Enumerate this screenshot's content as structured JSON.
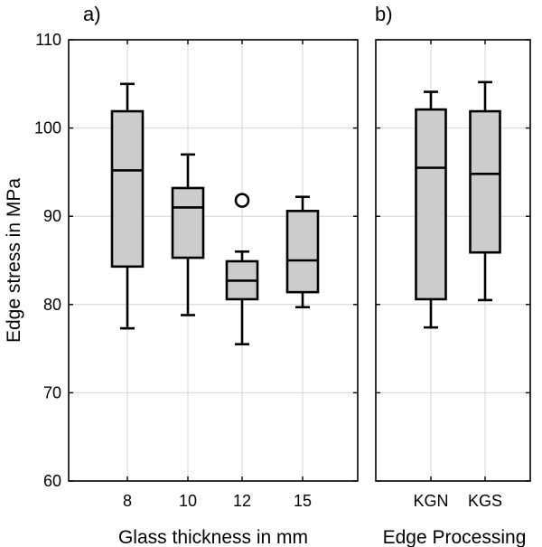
{
  "chart_data": [
    {
      "type": "box",
      "panel_label": "a)",
      "xlabel": "Glass thickness in mm",
      "ylabel": "Edge stress in MPa",
      "ylim": [
        60,
        110
      ],
      "yticks": [
        60,
        70,
        80,
        90,
        100,
        110
      ],
      "grid": true,
      "box_color": "#cccccc",
      "categories": [
        "8",
        "10",
        "12",
        "15"
      ],
      "boxes": [
        {
          "category": "8",
          "whisker_low": 77.3,
          "q1": 84.3,
          "median": 95.2,
          "q3": 101.9,
          "whisker_high": 105.0,
          "outliers": []
        },
        {
          "category": "10",
          "whisker_low": 78.8,
          "q1": 85.3,
          "median": 91.0,
          "q3": 93.2,
          "whisker_high": 97.0,
          "outliers": []
        },
        {
          "category": "12",
          "whisker_low": 75.5,
          "q1": 80.6,
          "median": 82.7,
          "q3": 84.9,
          "whisker_high": 86.0,
          "outliers": [
            91.8
          ]
        },
        {
          "category": "15",
          "whisker_low": 79.7,
          "q1": 81.4,
          "median": 85.0,
          "q3": 90.6,
          "whisker_high": 92.2,
          "outliers": []
        }
      ]
    },
    {
      "type": "box",
      "panel_label": "b)",
      "xlabel": "Edge Processing",
      "ylabel": "",
      "ylim": [
        60,
        110
      ],
      "yticks": [
        60,
        70,
        80,
        90,
        100,
        110
      ],
      "grid": true,
      "box_color": "#cccccc",
      "categories": [
        "KGN",
        "KGS"
      ],
      "boxes": [
        {
          "category": "KGN",
          "whisker_low": 77.4,
          "q1": 80.6,
          "median": 95.5,
          "q3": 102.1,
          "whisker_high": 104.1,
          "outliers": []
        },
        {
          "category": "KGS",
          "whisker_low": 80.5,
          "q1": 85.9,
          "median": 94.8,
          "q3": 101.9,
          "whisker_high": 105.2,
          "outliers": []
        }
      ]
    }
  ]
}
